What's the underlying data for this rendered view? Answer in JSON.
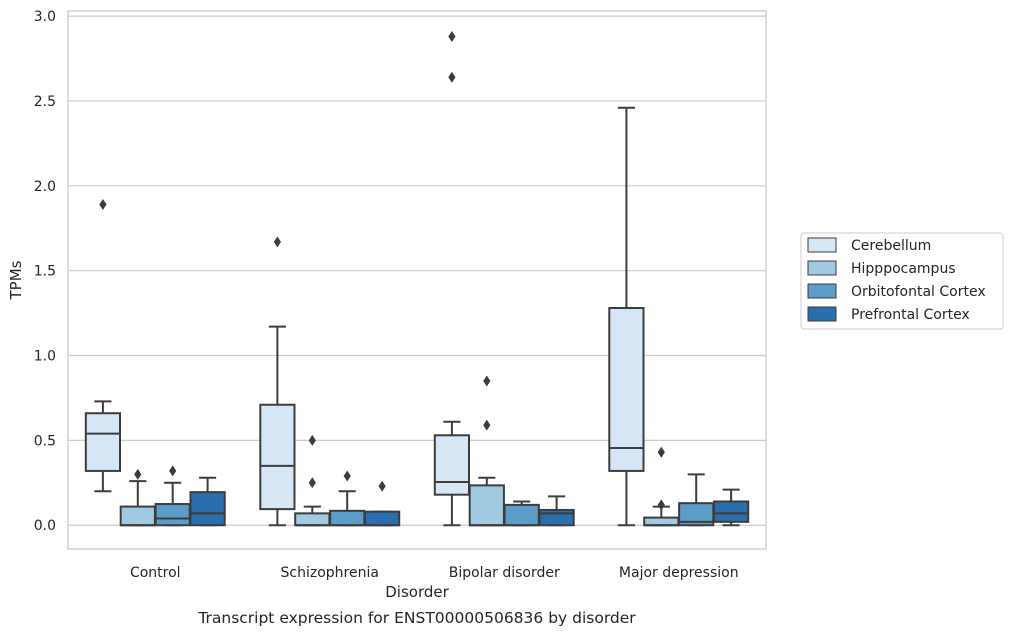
{
  "chart_data": {
    "type": "box",
    "caption": "Transcript expression for ENST00000506836 by disorder",
    "xlabel": "Disorder",
    "ylabel": "TPMs",
    "ylim": [
      -0.14,
      3.03
    ],
    "yticks": [
      "0.0",
      "0.5",
      "1.0",
      "1.5",
      "2.0",
      "2.5",
      "3.0"
    ],
    "grid": "horizontal",
    "legend_placement": "right",
    "categories": [
      "Control",
      "Schizophrenia",
      "Bipolar disorder",
      "Major depression"
    ],
    "series": [
      {
        "name": "Cerebellum",
        "color": "#d6e6f4",
        "boxes": [
          {
            "whislo": 0.2,
            "q1": 0.32,
            "med": 0.54,
            "q3": 0.66,
            "whishi": 0.73,
            "fliers": [
              1.89
            ]
          },
          {
            "whislo": 0.0,
            "q1": 0.095,
            "med": 0.35,
            "q3": 0.71,
            "whishi": 1.17,
            "fliers": [
              1.67
            ]
          },
          {
            "whislo": 0.0,
            "q1": 0.18,
            "med": 0.255,
            "q3": 0.53,
            "whishi": 0.61,
            "fliers": [
              2.64,
              2.88
            ]
          },
          {
            "whislo": 0.0,
            "q1": 0.32,
            "med": 0.455,
            "q3": 1.28,
            "whishi": 2.46,
            "fliers": []
          }
        ]
      },
      {
        "name": "Hipppocampus",
        "color": "#a1cae2",
        "boxes": [
          {
            "whislo": 0.0,
            "q1": 0.0,
            "med": 0.0,
            "q3": 0.11,
            "whishi": 0.26,
            "fliers": [
              0.3
            ]
          },
          {
            "whislo": 0.0,
            "q1": 0.0,
            "med": 0.0,
            "q3": 0.07,
            "whishi": 0.11,
            "fliers": [
              0.25,
              0.5
            ]
          },
          {
            "whislo": 0.0,
            "q1": 0.0,
            "med": 0.0,
            "q3": 0.235,
            "whishi": 0.28,
            "fliers": [
              0.59,
              0.85
            ]
          },
          {
            "whislo": 0.0,
            "q1": 0.0,
            "med": 0.0,
            "q3": 0.045,
            "whishi": 0.11,
            "fliers": [
              0.12,
              0.43
            ]
          }
        ]
      },
      {
        "name": "Orbitofontal Cortex",
        "color": "#5b9cc8",
        "boxes": [
          {
            "whislo": 0.0,
            "q1": 0.0,
            "med": 0.04,
            "q3": 0.125,
            "whishi": 0.25,
            "fliers": [
              0.32
            ]
          },
          {
            "whislo": 0.0,
            "q1": 0.0,
            "med": 0.0,
            "q3": 0.085,
            "whishi": 0.2,
            "fliers": [
              0.29
            ]
          },
          {
            "whislo": 0.0,
            "q1": 0.0,
            "med": 0.0,
            "q3": 0.12,
            "whishi": 0.14,
            "fliers": []
          },
          {
            "whislo": 0.0,
            "q1": 0.0,
            "med": 0.02,
            "q3": 0.13,
            "whishi": 0.3,
            "fliers": []
          }
        ]
      },
      {
        "name": "Prefrontal Cortex",
        "color": "#2a6ead",
        "boxes": [
          {
            "whislo": 0.0,
            "q1": 0.0,
            "med": 0.07,
            "q3": 0.195,
            "whishi": 0.28,
            "fliers": []
          },
          {
            "whislo": 0.0,
            "q1": 0.0,
            "med": 0.0,
            "q3": 0.08,
            "whishi": 0.08,
            "fliers": [
              0.23
            ]
          },
          {
            "whislo": 0.0,
            "q1": 0.0,
            "med": 0.07,
            "q3": 0.09,
            "whishi": 0.17,
            "fliers": []
          },
          {
            "whislo": 0.0,
            "q1": 0.02,
            "med": 0.07,
            "q3": 0.14,
            "whishi": 0.21,
            "fliers": []
          }
        ]
      }
    ]
  }
}
